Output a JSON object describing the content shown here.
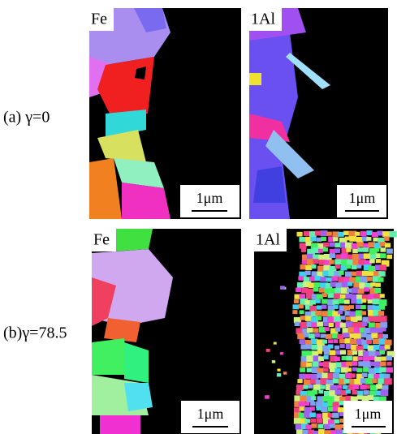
{
  "rows": [
    {
      "label": "(a) γ=0",
      "panels": [
        {
          "label": "Fe",
          "scale_bar": "1μm"
        },
        {
          "label": "1Al",
          "scale_bar": "1μm"
        }
      ]
    },
    {
      "label": "(b)γ=78.5",
      "panels": [
        {
          "label": "Fe",
          "scale_bar": "1μm"
        },
        {
          "label": "1Al",
          "scale_bar": "1μm"
        }
      ]
    }
  ]
}
